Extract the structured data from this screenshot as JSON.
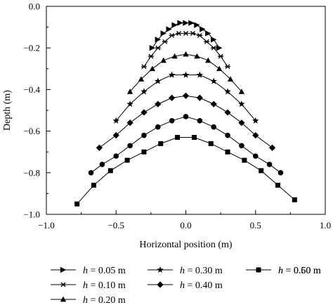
{
  "chart_data": {
    "type": "line",
    "xlabel": "Horizontal position (m)",
    "ylabel": "Depth (m)",
    "xlim": [
      -1.0,
      1.0
    ],
    "ylim": [
      -1.0,
      0.0
    ],
    "xticks": [
      "−1.0",
      "−0.5",
      "0.0",
      "0.5",
      "1.0"
    ],
    "yticks": [
      "0.0",
      "−0.2",
      "−0.4",
      "−0.6",
      "−0.8",
      "−1.0"
    ],
    "xtick_values": [
      -1.0,
      -0.5,
      0.0,
      0.5,
      1.0
    ],
    "ytick_values": [
      0.0,
      -0.2,
      -0.4,
      -0.6,
      -0.8,
      -1.0
    ],
    "grid": false,
    "legend_position": "bottom",
    "series": [
      {
        "name": "h = 0.05 m",
        "var": "h",
        "value_text": " = 0.05 m",
        "marker": "triangle-right",
        "x": [
          -0.24,
          -0.2,
          -0.16,
          -0.12,
          -0.08,
          -0.04,
          0.0,
          0.04,
          0.08,
          0.12,
          0.16,
          0.2,
          0.24
        ],
        "y": [
          -0.2,
          -0.16,
          -0.13,
          -0.11,
          -0.09,
          -0.08,
          -0.08,
          -0.08,
          -0.09,
          -0.11,
          -0.13,
          -0.16,
          -0.2
        ]
      },
      {
        "name": "h = 0.10 m",
        "var": "h",
        "value_text": " = 0.10 m",
        "marker": "asterisk",
        "x": [
          -0.3,
          -0.25,
          -0.2,
          -0.15,
          -0.1,
          -0.05,
          0.0,
          0.05,
          0.1,
          0.15,
          0.2,
          0.25,
          0.3
        ],
        "y": [
          -0.29,
          -0.24,
          -0.2,
          -0.17,
          -0.14,
          -0.13,
          -0.13,
          -0.13,
          -0.14,
          -0.17,
          -0.2,
          -0.24,
          -0.29
        ]
      },
      {
        "name": "h = 0.20 m",
        "var": "h",
        "value_text": " = 0.20 m",
        "marker": "triangle-up",
        "x": [
          -0.4,
          -0.32,
          -0.24,
          -0.16,
          -0.08,
          0.0,
          0.08,
          0.16,
          0.24,
          0.32,
          0.4
        ],
        "y": [
          -0.41,
          -0.35,
          -0.3,
          -0.26,
          -0.24,
          -0.23,
          -0.24,
          -0.26,
          -0.3,
          -0.35,
          -0.41
        ]
      },
      {
        "name": "h = 0.30 m",
        "var": "h",
        "value_text": " = 0.30 m",
        "marker": "star",
        "x": [
          -0.5,
          -0.4,
          -0.3,
          -0.2,
          -0.1,
          0.0,
          0.1,
          0.2,
          0.3,
          0.4,
          0.5
        ],
        "y": [
          -0.55,
          -0.47,
          -0.41,
          -0.36,
          -0.33,
          -0.33,
          -0.33,
          -0.36,
          -0.41,
          -0.47,
          -0.55
        ]
      },
      {
        "name": "h = 0.40 m",
        "var": "h",
        "value_text": " = 0.40 m",
        "marker": "diamond",
        "x": [
          -0.62,
          -0.5,
          -0.4,
          -0.3,
          -0.2,
          -0.1,
          0.0,
          0.1,
          0.2,
          0.3,
          0.4,
          0.5,
          0.62
        ],
        "y": [
          -0.68,
          -0.62,
          -0.56,
          -0.51,
          -0.47,
          -0.44,
          -0.43,
          -0.44,
          -0.47,
          -0.51,
          -0.56,
          -0.62,
          -0.68
        ]
      },
      {
        "name": "h = 0.50 m",
        "var": "h",
        "value_text": " = 0.50 m",
        "marker": "circle",
        "x": [
          -0.68,
          -0.6,
          -0.5,
          -0.4,
          -0.3,
          -0.2,
          -0.1,
          0.0,
          0.1,
          0.2,
          0.3,
          0.4,
          0.5,
          0.6,
          0.68
        ],
        "y": [
          -0.8,
          -0.76,
          -0.72,
          -0.67,
          -0.62,
          -0.58,
          -0.55,
          -0.53,
          -0.55,
          -0.58,
          -0.62,
          -0.67,
          -0.72,
          -0.76,
          -0.8
        ]
      },
      {
        "name": "h = 0.60 m",
        "var": "h",
        "value_text": " = 0.60 m",
        "marker": "square",
        "x": [
          -0.78,
          -0.66,
          -0.54,
          -0.42,
          -0.3,
          -0.18,
          -0.06,
          0.06,
          0.18,
          0.3,
          0.42,
          0.54,
          0.66,
          0.78
        ],
        "y": [
          -0.95,
          -0.86,
          -0.79,
          -0.74,
          -0.7,
          -0.66,
          -0.63,
          -0.63,
          -0.66,
          -0.7,
          -0.74,
          -0.79,
          -0.86,
          -0.93
        ]
      }
    ]
  }
}
